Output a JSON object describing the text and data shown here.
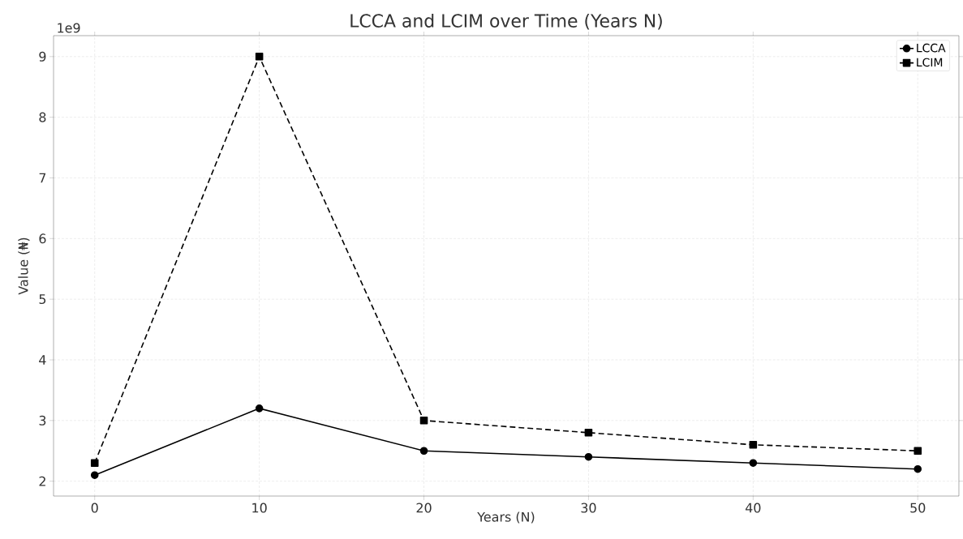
{
  "chart_data": {
    "type": "line",
    "title": "LCCA and LCIM over Time (Years N)",
    "xlabel": "Years (N)",
    "ylabel": "Value (₦)",
    "x": [
      0,
      10,
      20,
      30,
      40,
      50
    ],
    "series": [
      {
        "name": "LCCA",
        "color": "#000000",
        "marker": "circle",
        "line_style": "solid",
        "values": [
          2.1,
          3.2,
          2.5,
          2.4,
          2.3,
          2.2
        ]
      },
      {
        "name": "LCIM",
        "color": "#000000",
        "marker": "square",
        "line_style": "dashed",
        "values": [
          2.3,
          9.0,
          3.0,
          2.8,
          2.6,
          2.5
        ]
      }
    ],
    "xlim": [
      -2.5,
      52.5
    ],
    "ylim": [
      1.755,
      9.345
    ],
    "xticks": [
      0,
      10,
      20,
      30,
      40,
      50
    ],
    "yticks": [
      2,
      3,
      4,
      5,
      6,
      7,
      8,
      9
    ],
    "annotations": [
      "1e9"
    ],
    "grid": true,
    "legend": "top right"
  }
}
